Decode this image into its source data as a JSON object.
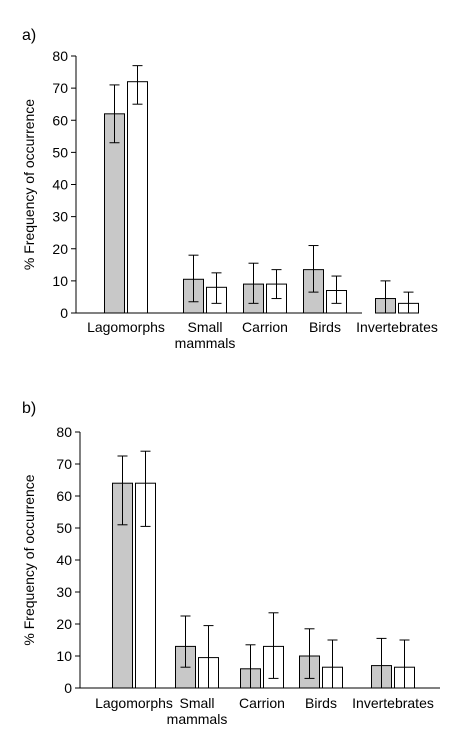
{
  "chart_data": [
    {
      "type": "bar",
      "panel_label": "a)",
      "ylabel": "% Frequency of occurrence",
      "ylim": [
        0,
        80
      ],
      "yticks": [
        0,
        10,
        20,
        30,
        40,
        50,
        60,
        70,
        80
      ],
      "categories": [
        "Lagomorphs",
        "Small\nmammals",
        "Carrion",
        "Birds",
        "Invertebrates"
      ],
      "series": [
        {
          "fill": "#c8c8c8",
          "values": [
            62,
            10.5,
            9,
            13.5,
            4.5
          ],
          "error_low": [
            53,
            3.5,
            3,
            6.5,
            0
          ],
          "error_high": [
            71,
            18,
            15.5,
            21,
            10
          ]
        },
        {
          "fill": "#ffffff",
          "values": [
            72,
            8,
            9,
            7,
            3
          ],
          "error_low": [
            65,
            3,
            4.5,
            3,
            0
          ],
          "error_high": [
            77,
            12.5,
            13.5,
            11.5,
            6.5
          ]
        }
      ]
    },
    {
      "type": "bar",
      "panel_label": "b)",
      "ylabel": "% Frequency of occurrence",
      "ylim": [
        0,
        80
      ],
      "yticks": [
        0,
        10,
        20,
        30,
        40,
        50,
        60,
        70,
        80
      ],
      "categories": [
        "Lagomorphs",
        "Small\nmammals",
        "Carrion",
        "Birds",
        "Invertebrates"
      ],
      "series": [
        {
          "fill": "#c8c8c8",
          "values": [
            64,
            13,
            6,
            10,
            7
          ],
          "error_low": [
            51,
            6.5,
            0,
            3,
            0
          ],
          "error_high": [
            72.5,
            22.5,
            13.5,
            18.5,
            15.5
          ]
        },
        {
          "fill": "#ffffff",
          "values": [
            64,
            9.5,
            13,
            6.5,
            6.5
          ],
          "error_low": [
            50.5,
            0,
            3,
            0,
            0
          ],
          "error_high": [
            74,
            19.5,
            23.5,
            15,
            15
          ]
        }
      ]
    }
  ]
}
